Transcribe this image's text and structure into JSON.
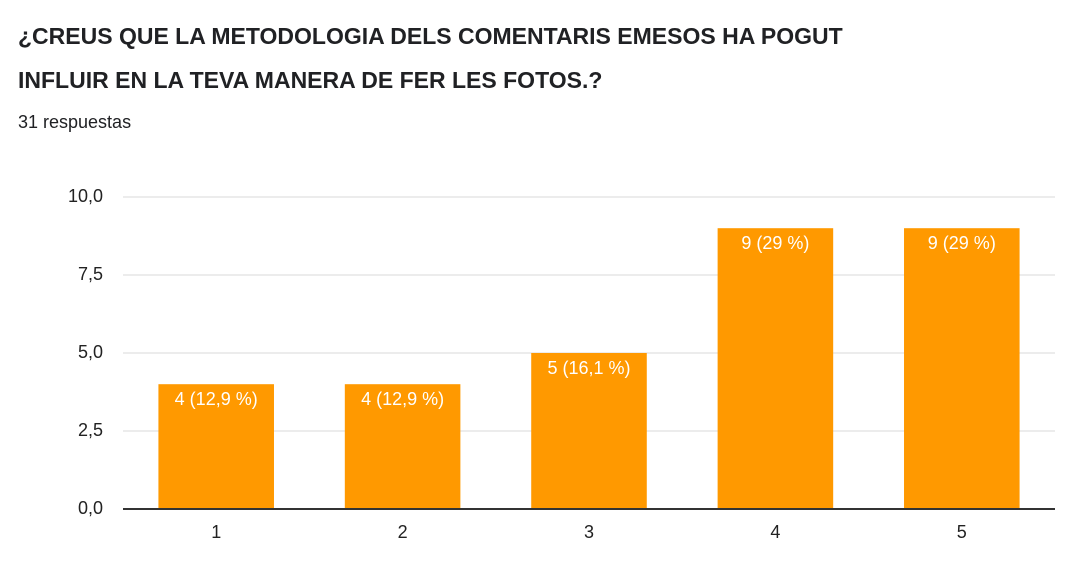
{
  "chart_data": {
    "type": "bar",
    "title": "¿CREUS QUE LA METODOLOGIA DELS COMENTARIS EMESOS HA POGUT INFLUIR EN LA TEVA MANERA DE FER LES FOTOS.?",
    "subtitle": "31 respuestas",
    "categories": [
      "1",
      "2",
      "3",
      "4",
      "5"
    ],
    "values": [
      4,
      4,
      5,
      9,
      9
    ],
    "value_labels": [
      "4 (12,9 %)",
      "4 (12,9 %)",
      "5 (16,1 %)",
      "9 (29 %)",
      "9 (29 %)"
    ],
    "color": "#ff9900",
    "ylim": [
      0,
      10
    ],
    "yticks": [
      {
        "value": 0,
        "label": "0,0"
      },
      {
        "value": 2.5,
        "label": "2,5"
      },
      {
        "value": 5,
        "label": "5,0"
      },
      {
        "value": 7.5,
        "label": "7,5"
      },
      {
        "value": 10,
        "label": "10,0"
      }
    ],
    "grid": true
  }
}
